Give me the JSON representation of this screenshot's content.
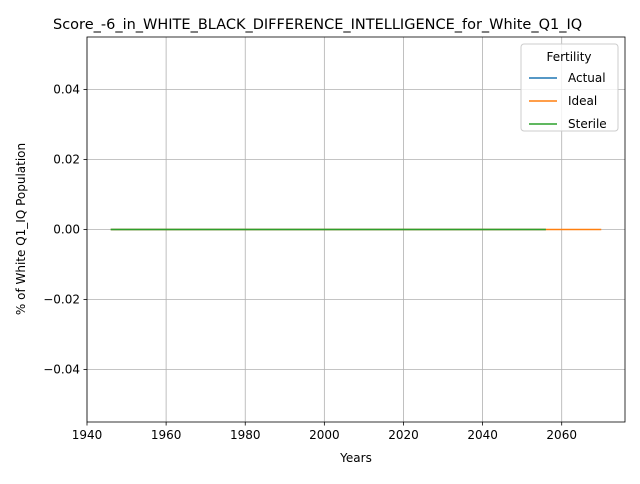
{
  "chart_data": {
    "type": "line",
    "title": "Score_-6_in_WHITE_BLACK_DIFFERENCE_INTELLIGENCE_for_White_Q1_IQ",
    "xlabel": "Years",
    "ylabel": "% of White Q1_IQ Population",
    "xlim": [
      1940,
      2076
    ],
    "ylim": [
      -0.055,
      0.055
    ],
    "x_ticks": [
      1940,
      1960,
      1980,
      2000,
      2020,
      2040,
      2060
    ],
    "y_ticks": [
      -0.04,
      -0.02,
      0.0,
      0.02,
      0.04
    ],
    "y_tick_labels": [
      "−0.04",
      "−0.02",
      "0.00",
      "0.02",
      "0.04"
    ],
    "grid": true,
    "legend": {
      "title": "Fertility",
      "placement": "top-right",
      "entries": [
        "Actual",
        "Ideal",
        "Sterile"
      ]
    },
    "series": [
      {
        "name": "Actual",
        "color": "#1f77b4",
        "x": [
          1946,
          2056
        ],
        "y": [
          0.0,
          0.0
        ]
      },
      {
        "name": "Ideal",
        "color": "#ff7f0e",
        "x": [
          1946,
          2070
        ],
        "y": [
          0.0,
          0.0
        ]
      },
      {
        "name": "Sterile",
        "color": "#2ca02c",
        "x": [
          1946,
          2056
        ],
        "y": [
          0.0,
          0.0
        ]
      }
    ]
  }
}
